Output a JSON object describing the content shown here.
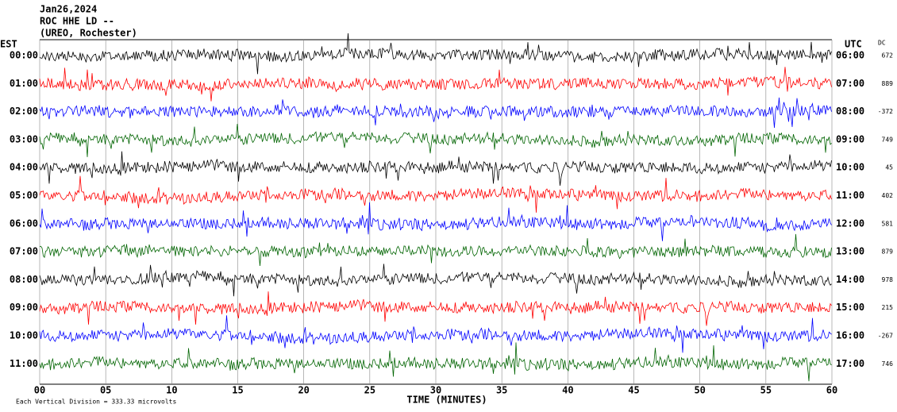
{
  "header": {
    "date": "Jan26,2024",
    "station": "ROC HHE LD --",
    "location": "(UREO, Rochester)"
  },
  "left_label": "EST",
  "right_label": "UTC",
  "dc_label": "DC",
  "rows": [
    {
      "est": "00:00",
      "utc": "06:00",
      "dc": "672"
    },
    {
      "est": "01:00",
      "utc": "07:00",
      "dc": "889"
    },
    {
      "est": "02:00",
      "utc": "08:00",
      "dc": "-372"
    },
    {
      "est": "03:00",
      "utc": "09:00",
      "dc": "749"
    },
    {
      "est": "04:00",
      "utc": "10:00",
      "dc": "45"
    },
    {
      "est": "05:00",
      "utc": "11:00",
      "dc": "402"
    },
    {
      "est": "06:00",
      "utc": "12:00",
      "dc": "581"
    },
    {
      "est": "07:00",
      "utc": "13:00",
      "dc": "879"
    },
    {
      "est": "08:00",
      "utc": "14:00",
      "dc": "978"
    },
    {
      "est": "09:00",
      "utc": "15:00",
      "dc": "215"
    },
    {
      "est": "10:00",
      "utc": "16:00",
      "dc": "-267"
    },
    {
      "est": "11:00",
      "utc": "17:00",
      "dc": "746"
    }
  ],
  "x_axis": {
    "ticks": [
      "00",
      "05",
      "10",
      "15",
      "20",
      "25",
      "30",
      "35",
      "40",
      "45",
      "50",
      "55",
      "60"
    ],
    "label": "TIME (MINUTES)"
  },
  "footer": "Each Vertical Division = 333.33 microvolts"
}
